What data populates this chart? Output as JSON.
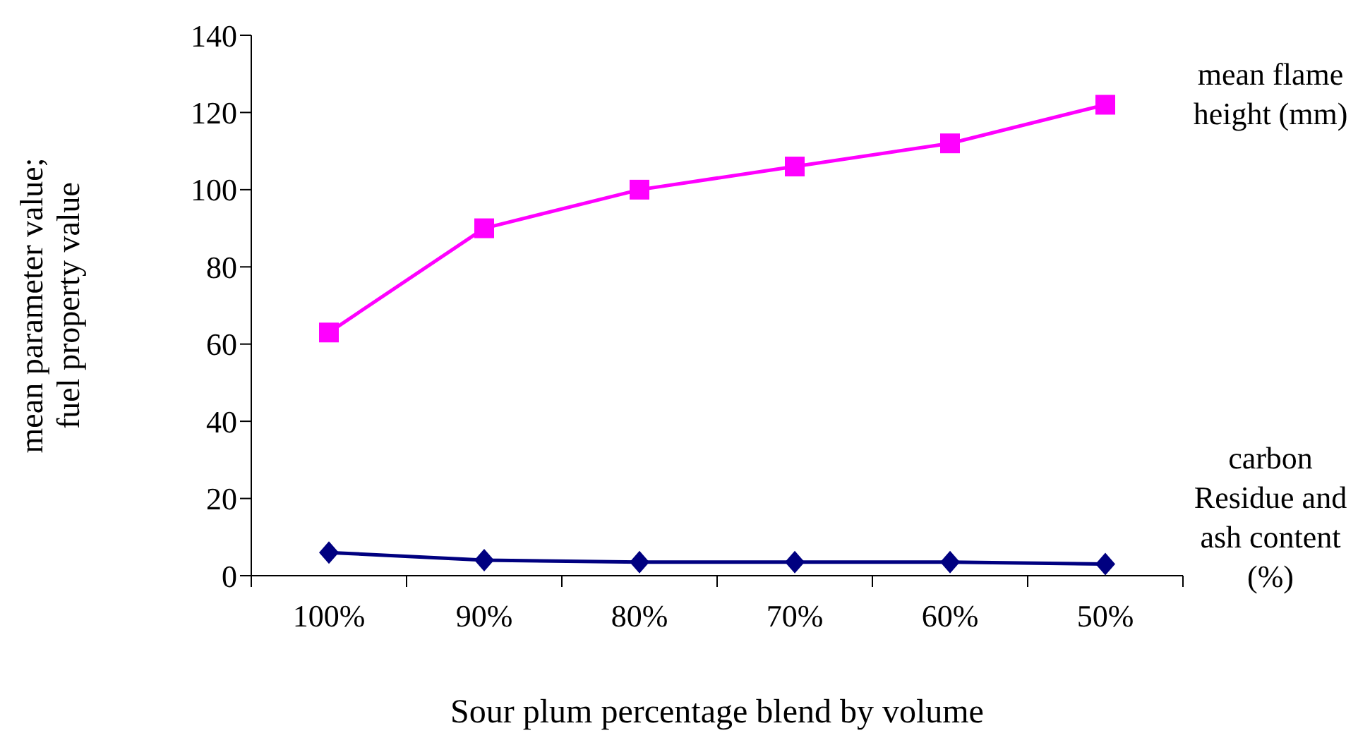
{
  "chart_data": {
    "type": "line",
    "xlabel": "Sour plum percentage blend by volume",
    "ylabel": "mean parameter value; fuel property value",
    "categories": [
      "100%",
      "90%",
      "80%",
      "70%",
      "60%",
      "50%"
    ],
    "series": [
      {
        "name": "mean flame height (mm)",
        "color": "#ff00ff",
        "marker": "square",
        "values": [
          63,
          90,
          100,
          106,
          112,
          122
        ]
      },
      {
        "name": "carbon Residue and ash content (%)",
        "color": "#000080",
        "marker": "diamond",
        "values": [
          6,
          4,
          3.5,
          3.5,
          3.5,
          3
        ]
      }
    ],
    "ylim": [
      0,
      140
    ],
    "yticks": [
      0,
      20,
      40,
      60,
      80,
      100,
      120,
      140
    ],
    "grid": false,
    "legend": false
  }
}
